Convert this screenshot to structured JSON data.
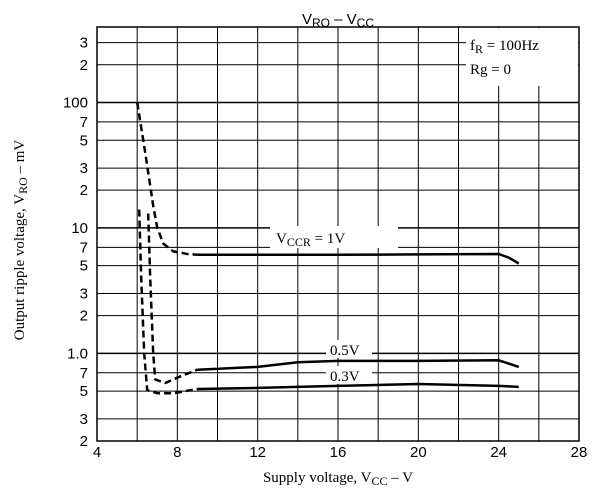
{
  "chart_data": {
    "type": "line",
    "title": [
      {
        "text": "V"
      },
      {
        "text": "RO",
        "sub": true
      },
      {
        "text": " – V"
      },
      {
        "text": "CC",
        "sub": true
      }
    ],
    "x_label": [
      {
        "text": "Supply voltage, V"
      },
      {
        "text": "CC",
        "sub": true
      },
      {
        "text": " – V"
      }
    ],
    "y_label": [
      {
        "text": "Output ripple voltage, V"
      },
      {
        "text": "RO",
        "sub": true
      },
      {
        "text": " – mV"
      }
    ],
    "xlim": [
      4,
      28
    ],
    "xticks": [
      4,
      8,
      12,
      16,
      20,
      24,
      28
    ],
    "x_minor_ticks": [
      6,
      10,
      14,
      18,
      22,
      26
    ],
    "ylim": [
      0.2,
      400
    ],
    "log_y": true,
    "grid": true,
    "yticks": [
      {
        "value": 0.2,
        "label": "2"
      },
      {
        "value": 0.3,
        "label": "3"
      },
      {
        "value": 0.5,
        "label": "5"
      },
      {
        "value": 0.7,
        "label": "7"
      },
      {
        "value": 1,
        "label": "1.0"
      },
      2,
      3,
      5,
      7,
      10,
      {
        "value": 20,
        "label": "2"
      },
      {
        "value": 30,
        "label": "3"
      },
      {
        "value": 50,
        "label": "5"
      },
      {
        "value": 70,
        "label": "7"
      },
      100,
      {
        "value": 200,
        "label": "2"
      },
      {
        "value": 300,
        "label": "3"
      }
    ],
    "color": "#000000",
    "series": [
      {
        "style": "dashed",
        "x": [
          6,
          6.4,
          6.8,
          7.0,
          7.3,
          7.8,
          8.5,
          9
        ],
        "values": [
          100,
          40,
          15,
          10,
          7.5,
          6.5,
          6.2,
          6.1
        ]
      },
      {
        "style": "solid",
        "x": [
          9,
          12,
          16,
          20,
          24,
          24.5,
          25
        ],
        "values": [
          6.1,
          6.1,
          6.1,
          6.15,
          6.2,
          5.8,
          5.2
        ]
      },
      {
        "style": "dashed",
        "x": [
          6.55,
          6.65,
          6.8,
          6.9,
          7.4,
          8.1,
          9
        ],
        "values": [
          13,
          4,
          1,
          0.62,
          0.58,
          0.65,
          0.74
        ]
      },
      {
        "style": "solid",
        "x": [
          9,
          12,
          14,
          16,
          20,
          24,
          25
        ],
        "values": [
          0.74,
          0.78,
          0.85,
          0.87,
          0.87,
          0.88,
          0.78
        ]
      },
      {
        "style": "dashed",
        "x": [
          6.1,
          6.2,
          6.35,
          6.5,
          7,
          7.8,
          8.4,
          9
        ],
        "values": [
          14,
          4,
          1,
          0.51,
          0.48,
          0.48,
          0.5,
          0.52
        ]
      },
      {
        "style": "solid",
        "x": [
          9,
          12,
          16,
          20,
          24,
          25
        ],
        "values": [
          0.52,
          0.53,
          0.55,
          0.57,
          0.55,
          0.54
        ]
      }
    ],
    "annotations": [
      [
        {
          "text": "f"
        },
        {
          "text": "R",
          "sub": true
        },
        {
          "text": " = 100Hz"
        }
      ],
      [
        {
          "text": "Rg = 0"
        }
      ],
      [
        {
          "text": "V"
        },
        {
          "text": "CCR",
          "sub": true
        },
        {
          "text": " = 1V"
        }
      ],
      [
        {
          "text": "0.5V"
        }
      ],
      [
        {
          "text": "0.3V"
        }
      ]
    ]
  }
}
